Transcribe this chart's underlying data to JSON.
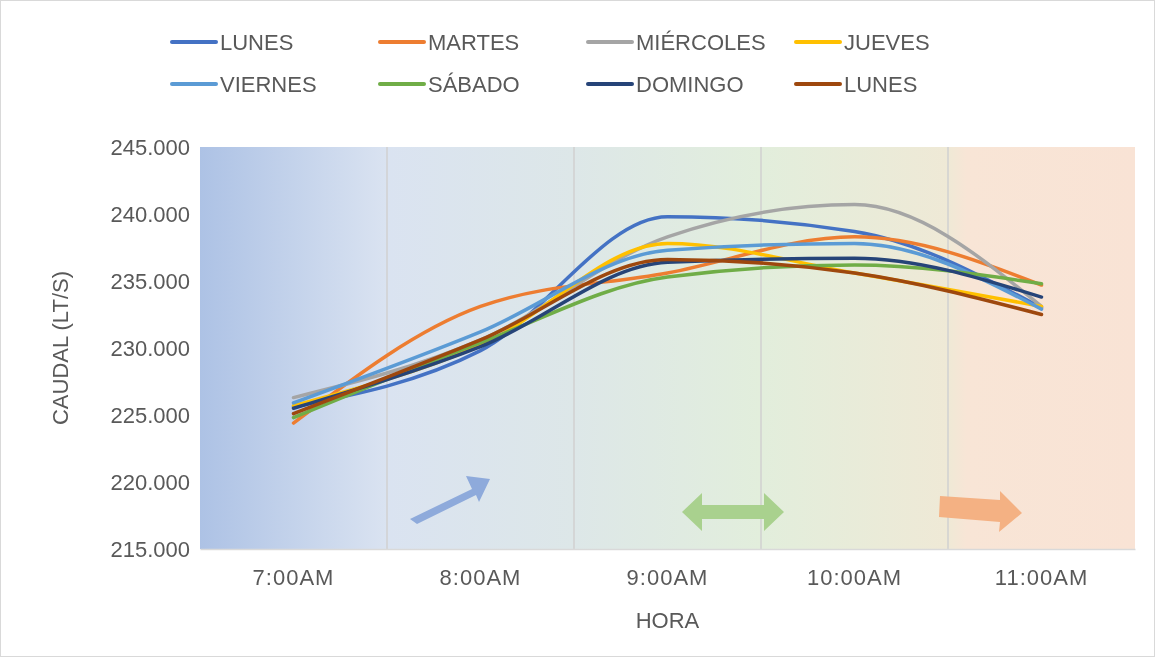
{
  "chart_data": {
    "type": "line",
    "xlabel": "HORA",
    "ylabel": "CAUDAL (LT/S)",
    "categories": [
      "7:00AM",
      "8:00AM",
      "9:00AM",
      "10:00AM",
      "11:00AM"
    ],
    "ylim": [
      215000,
      245000
    ],
    "yticks": [
      {
        "value": 215000,
        "label": "215.000"
      },
      {
        "value": 220000,
        "label": "220.000"
      },
      {
        "value": 225000,
        "label": "225.000"
      },
      {
        "value": 230000,
        "label": "230.000"
      },
      {
        "value": 235000,
        "label": "235.000"
      },
      {
        "value": 240000,
        "label": "240.000"
      },
      {
        "value": 245000,
        "label": "245.000"
      }
    ],
    "grid": "x",
    "legend": "top",
    "marker": "none",
    "line_style": "solid",
    "series": [
      {
        "name": "LUNES",
        "color": "#4472c4",
        "values": [
          225600,
          229800,
          239800,
          238700,
          233000
        ]
      },
      {
        "name": "MARTES",
        "color": "#ed7d31",
        "values": [
          224400,
          233100,
          235600,
          238300,
          234700
        ]
      },
      {
        "name": "MIÉRCOLES",
        "color": "#a5a5a5",
        "values": [
          226300,
          230600,
          238300,
          240700,
          233100
        ]
      },
      {
        "name": "JUEVES",
        "color": "#ffc000",
        "values": [
          225700,
          230200,
          237800,
          235600,
          233100
        ]
      },
      {
        "name": "VIERNES",
        "color": "#5b9bd5",
        "values": [
          225900,
          231200,
          237300,
          237800,
          232900
        ]
      },
      {
        "name": "SÁBADO",
        "color": "#70ad47",
        "values": [
          224800,
          230400,
          235300,
          236200,
          234800
        ]
      },
      {
        "name": "DOMINGO",
        "color": "#264478",
        "values": [
          225500,
          230100,
          236400,
          236700,
          233800
        ]
      },
      {
        "name": "LUNES",
        "color": "#9e480e",
        "values": [
          225100,
          230600,
          236600,
          235600,
          232500
        ]
      }
    ]
  }
}
